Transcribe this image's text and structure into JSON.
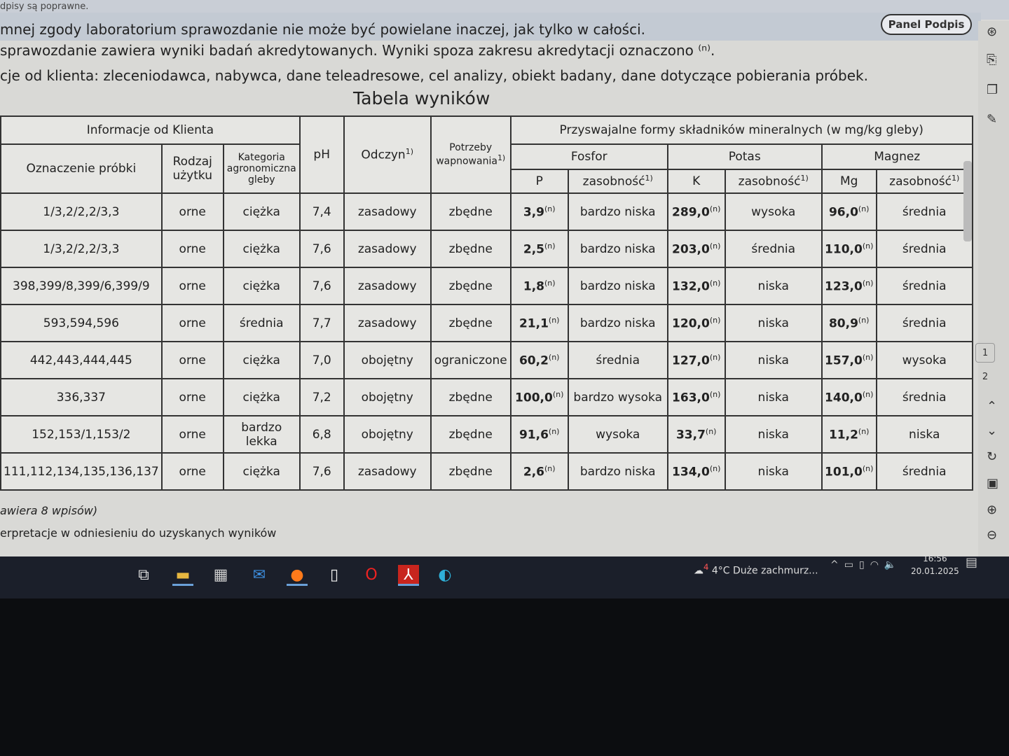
{
  "topbar": {
    "text": "dpisy są poprawne."
  },
  "panel_button": "Panel Podpis",
  "lines": [
    "mnej zgody laboratorium sprawozdanie nie może być powielane inaczej, jak tylko w całości.",
    "sprawozdanie zawiera wyniki badań akredytowanych. Wyniki spoza zakresu akredytacji oznaczono ⁽ⁿ⁾.",
    "cje od klienta: zleceniodawca, nabywca, dane teleadresowe, cel analizy, obiekt badany, dane dotyczące pobierania próbek."
  ],
  "title": "Tabela wyników",
  "table": {
    "group_client": "Informacje od Klienta",
    "group_minerals": "Przyswajalne formy składników mineralnych (w mg/kg gleby)",
    "col_oznaczenie": "Oznaczenie próbki",
    "col_rodzaj": "Rodzaj użytku",
    "col_kategoria": "Kategoria agronomiczna gleby",
    "col_ph": "pH",
    "col_odczyn": "Odczyn",
    "col_potrzeby": "Potrzeby wapnowania",
    "fn": "1)",
    "fosfor": "Fosfor",
    "potas": "Potas",
    "magnez": "Magnez",
    "p": "P",
    "k": "K",
    "mg": "Mg",
    "zasobnosc": "zasobność",
    "n": "(n)",
    "rows": [
      [
        "1/3,2/2,2/3,3",
        "orne",
        "ciężka",
        "7,4",
        "zasadowy",
        "zbędne",
        "3,9",
        "bardzo niska",
        "289,0",
        "wysoka",
        "96,0",
        "średnia"
      ],
      [
        "1/3,2/2,2/3,3",
        "orne",
        "ciężka",
        "7,6",
        "zasadowy",
        "zbędne",
        "2,5",
        "bardzo niska",
        "203,0",
        "średnia",
        "110,0",
        "średnia"
      ],
      [
        "398,399/8,399/6,399/9",
        "orne",
        "ciężka",
        "7,6",
        "zasadowy",
        "zbędne",
        "1,8",
        "bardzo niska",
        "132,0",
        "niska",
        "123,0",
        "średnia"
      ],
      [
        "593,594,596",
        "orne",
        "średnia",
        "7,7",
        "zasadowy",
        "zbędne",
        "21,1",
        "bardzo niska",
        "120,0",
        "niska",
        "80,9",
        "średnia"
      ],
      [
        "442,443,444,445",
        "orne",
        "ciężka",
        "7,0",
        "obojętny",
        "ograniczone",
        "60,2",
        "średnia",
        "127,0",
        "niska",
        "157,0",
        "wysoka"
      ],
      [
        "336,337",
        "orne",
        "ciężka",
        "7,2",
        "obojętny",
        "zbędne",
        "100,0",
        "bardzo wysoka",
        "163,0",
        "niska",
        "140,0",
        "średnia"
      ],
      [
        "152,153/1,153/2",
        "orne",
        "bardzo lekka",
        "6,8",
        "obojętny",
        "zbędne",
        "91,6",
        "wysoka",
        "33,7",
        "niska",
        "11,2",
        "niska"
      ],
      [
        "111,112,134,135,136,137",
        "orne",
        "ciężka",
        "7,6",
        "zasadowy",
        "zbędne",
        "2,6",
        "bardzo niska",
        "134,0",
        "niska",
        "101,0",
        "średnia"
      ]
    ]
  },
  "foot1": "awiera 8 wpisów)",
  "foot2": "erpretacje w odniesieniu do uzyskanych wyników",
  "pages": [
    "1",
    "2"
  ],
  "taskbar": {
    "weather": "4°C  Duże zachmurz...",
    "weather_badge": "4",
    "time": "16:56",
    "date": "20.01.2025"
  }
}
